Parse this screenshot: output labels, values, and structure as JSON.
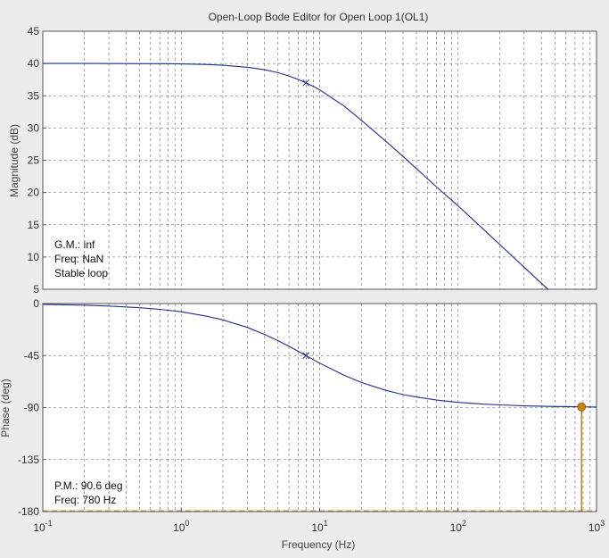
{
  "title": "Open-Loop Bode Editor for Open Loop 1(OL1)",
  "colors": {
    "background": "#ececec",
    "axes_face": "#ffffff",
    "curve": "#1f2d8f",
    "margin_marker": "#c8860a",
    "grid": "#555555"
  },
  "chart_data": [
    {
      "type": "line",
      "panel": "magnitude",
      "xlabel": "",
      "ylabel": "Magnitude (dB)",
      "xscale": "log",
      "xlim": [
        0.1,
        1000
      ],
      "ylim": [
        5,
        45
      ],
      "yticks": [
        5,
        10,
        15,
        20,
        25,
        30,
        35,
        40,
        45
      ],
      "grid": true,
      "series": [
        {
          "x": [
            0.1,
            0.2,
            0.3,
            0.5,
            0.7,
            1,
            1.5,
            2,
            3,
            4,
            5,
            6,
            7,
            7.96,
            9,
            10,
            15,
            20,
            30,
            40,
            50,
            70,
            100,
            150,
            200,
            300,
            400,
            450
          ],
          "y": [
            40.0,
            40.0,
            39.99,
            39.98,
            39.97,
            39.93,
            39.85,
            39.73,
            39.42,
            39.03,
            38.58,
            38.07,
            37.52,
            37.0,
            36.44,
            35.92,
            33.41,
            31.2,
            27.96,
            25.59,
            23.71,
            20.85,
            17.93,
            14.44,
            11.94,
            8.42,
            5.93,
            4.91
          ]
        }
      ],
      "markers": [
        {
          "x": 7.96,
          "y": 37.0,
          "shape": "x"
        }
      ],
      "annotations": [
        "G.M.: inf",
        "Freq: NaN",
        "Stable loop"
      ]
    },
    {
      "type": "line",
      "panel": "phase",
      "xlabel": "Frequency (Hz)",
      "ylabel": "Phase (deg)",
      "xscale": "log",
      "xlim": [
        0.1,
        1000
      ],
      "xticks": [
        "10",
        "10",
        "10",
        "10",
        "10"
      ],
      "xtick_exponents": [
        "-1",
        "0",
        "1",
        "2",
        "3"
      ],
      "ylim": [
        -180,
        0
      ],
      "yticks": [
        0,
        -45,
        -90,
        -135,
        -180
      ],
      "grid": true,
      "series": [
        {
          "x": [
            0.1,
            0.2,
            0.3,
            0.5,
            0.7,
            1,
            1.5,
            2,
            3,
            4,
            5,
            6,
            7,
            7.96,
            9,
            10,
            15,
            20,
            30,
            40,
            50,
            70,
            100,
            150,
            200,
            300,
            500,
            780,
            1000
          ],
          "y": [
            -0.7,
            -1.4,
            -2.2,
            -3.6,
            -5.0,
            -7.1,
            -10.7,
            -14.1,
            -20.6,
            -26.7,
            -32.1,
            -37.0,
            -41.3,
            -45.0,
            -48.5,
            -51.5,
            -62.0,
            -68.3,
            -75.1,
            -78.8,
            -80.9,
            -83.5,
            -85.5,
            -87.0,
            -87.7,
            -88.5,
            -89.1,
            -89.4,
            -89.5
          ]
        }
      ],
      "markers": [
        {
          "x": 7.96,
          "y": -45.0,
          "shape": "x"
        }
      ],
      "margin_marker": {
        "x": 780,
        "y": -89.4
      },
      "annotations": [
        "P.M.: 90.6 deg",
        "Freq: 780 Hz"
      ]
    }
  ]
}
